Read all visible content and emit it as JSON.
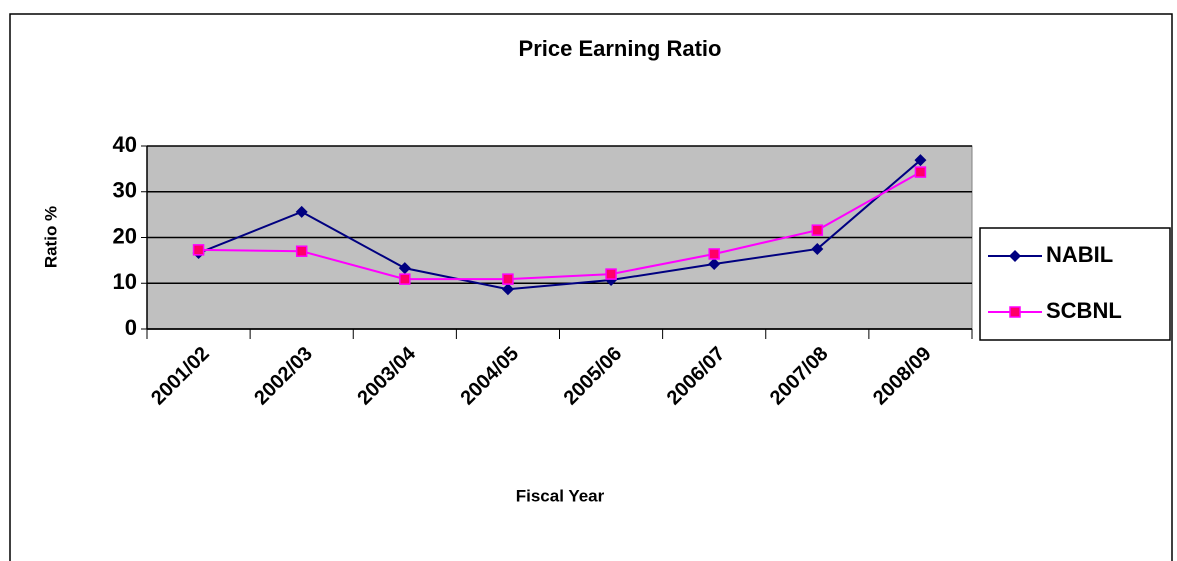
{
  "chart_data": {
    "type": "line",
    "title": "Price Earning Ratio",
    "x_label": "Fiscal Year",
    "y_label": "Ratio %",
    "categories": [
      "2001/02",
      "2002/03",
      "2003/04",
      "2004/05",
      "2005/06",
      "2006/07",
      "2007/08",
      "2008/09"
    ],
    "series": [
      {
        "name": "NABIL",
        "color": "#000080",
        "marker": "diamond",
        "marker_color": "#000080",
        "values": [
          16.6,
          25.6,
          13.3,
          8.7,
          10.7,
          14.2,
          17.5,
          36.9
        ]
      },
      {
        "name": "SCBNL",
        "color": "#ff00ff",
        "marker": "square",
        "marker_color": "#ff0066",
        "values": [
          17.3,
          17.0,
          10.9,
          10.9,
          12.0,
          16.4,
          21.6,
          34.3
        ]
      }
    ],
    "ylim": [
      0,
      40
    ],
    "yticks": [
      0,
      10,
      20,
      30,
      40
    ],
    "grid": true,
    "legend": "right"
  }
}
